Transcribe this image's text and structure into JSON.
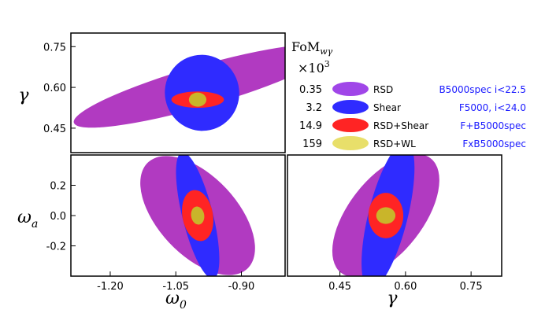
{
  "chart_data": {
    "type": "contour-ellipses",
    "colors": {
      "RSD": "#b13ac1",
      "Shear": "#2f2bff",
      "RSD+Shear": "#ff2424",
      "RSD+WL": "#c9b52a"
    },
    "legend": {
      "title": "FoM",
      "title_sub": "wγ",
      "scale_text": "×10",
      "scale_exp": "3",
      "entries": [
        {
          "fom": "0.35",
          "name": "RSD",
          "survey": "B5000spec i<22.5",
          "color": "#a046e8"
        },
        {
          "fom": "3.2",
          "name": "Shear",
          "survey": "F5000, i<24.0",
          "color": "#2f2bff"
        },
        {
          "fom": "14.9",
          "name": "RSD+Shear",
          "survey": "F+B5000spec",
          "color": "#ff2424"
        },
        {
          "fom": "159",
          "name": "RSD+WL",
          "survey": "FxB5000spec",
          "color": "#e8df6a"
        }
      ]
    },
    "panels": {
      "w0_gamma": {
        "xlabel": "",
        "ylabel": "γ",
        "xlim": [
          -1.29,
          -0.8
        ],
        "ylim": [
          0.36,
          0.8
        ],
        "yticks": [
          "0.75",
          "0.60",
          "0.45"
        ],
        "ellipses": [
          {
            "set": "RSD",
            "cx": -0.99,
            "cy": 0.605,
            "rx": 0.305,
            "ry": 0.075,
            "angle": -16
          },
          {
            "set": "Shear",
            "cx": -0.99,
            "cy": 0.58,
            "rx": 0.085,
            "ry": 0.14,
            "angle": -12
          },
          {
            "set": "RSD+Shear",
            "cx": -1.0,
            "cy": 0.555,
            "rx": 0.06,
            "ry": 0.03,
            "angle": 0
          },
          {
            "set": "RSD+WL",
            "cx": -1.0,
            "cy": 0.555,
            "rx": 0.02,
            "ry": 0.026,
            "angle": 0
          }
        ]
      },
      "w0_wa": {
        "xlabel": "ω",
        "xlabel_sub": "0",
        "ylabel": "ω",
        "ylabel_sub": "a",
        "xlim": [
          -1.29,
          -0.8
        ],
        "ylim": [
          -0.4,
          0.4
        ],
        "xticks": [
          "-1.20",
          "-1.05",
          "-0.90"
        ],
        "yticks": [
          "0.2",
          "0.0",
          "-0.2"
        ],
        "ellipses": [
          {
            "set": "RSD",
            "cx": -1.0,
            "cy": 0.0,
            "rx": 0.09,
            "ry": 0.48,
            "angle": -43
          },
          {
            "set": "Shear",
            "cx": -1.0,
            "cy": 0.0,
            "rx": 0.035,
            "ry": 0.43,
            "angle": -14
          },
          {
            "set": "RSD+Shear",
            "cx": -1.0,
            "cy": 0.0,
            "rx": 0.035,
            "ry": 0.17,
            "angle": -10
          },
          {
            "set": "RSD+WL",
            "cx": -1.0,
            "cy": 0.0,
            "rx": 0.015,
            "ry": 0.06,
            "angle": -10
          }
        ]
      },
      "gamma_wa": {
        "xlabel": "γ",
        "ylabel": "",
        "xlim": [
          0.33,
          0.82
        ],
        "ylim": [
          -0.4,
          0.4
        ],
        "xticks": [
          "0.45",
          "0.60",
          "0.75"
        ],
        "ellipses": [
          {
            "set": "RSD",
            "cx": 0.555,
            "cy": 0.0,
            "rx": 0.085,
            "ry": 0.48,
            "angle": 38
          },
          {
            "set": "Shear",
            "cx": 0.56,
            "cy": 0.0,
            "rx": 0.045,
            "ry": 0.5,
            "angle": 14
          },
          {
            "set": "RSD+Shear",
            "cx": 0.555,
            "cy": 0.0,
            "rx": 0.04,
            "ry": 0.15,
            "angle": 0
          },
          {
            "set": "RSD+WL",
            "cx": 0.555,
            "cy": 0.0,
            "rx": 0.022,
            "ry": 0.055,
            "angle": 0
          }
        ]
      }
    }
  }
}
